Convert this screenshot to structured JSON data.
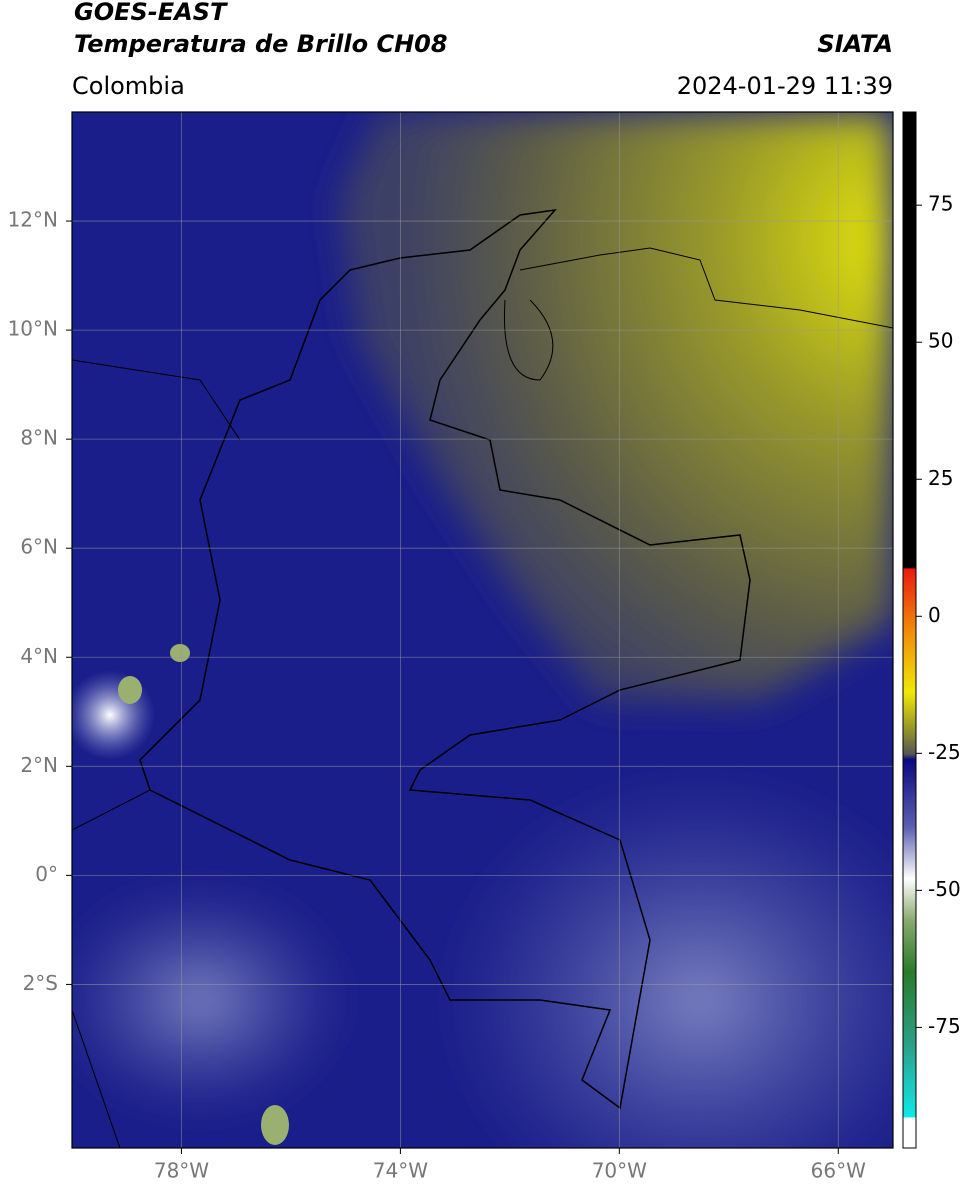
{
  "header": {
    "title": "GOES-EAST",
    "subtitle": "Temperatura de Brillo CH08",
    "source": "SIATA",
    "region": "Colombia",
    "datetime": "2024-01-29 11:39"
  },
  "map": {
    "xlim": [
      -80,
      -65
    ],
    "ylim": [
      -5,
      14
    ],
    "xticks": [
      {
        "value": -78,
        "label": "78°W"
      },
      {
        "value": -74,
        "label": "74°W"
      },
      {
        "value": -70,
        "label": "70°W"
      },
      {
        "value": -66,
        "label": "66°W"
      }
    ],
    "yticks": [
      {
        "value": 12,
        "label": "12°N"
      },
      {
        "value": 10,
        "label": "10°N"
      },
      {
        "value": 8,
        "label": "8°N"
      },
      {
        "value": 6,
        "label": "6°N"
      },
      {
        "value": 4,
        "label": "4°N"
      },
      {
        "value": 2,
        "label": "2°N"
      },
      {
        "value": 0,
        "label": "0°"
      },
      {
        "value": -2,
        "label": "2°S"
      }
    ],
    "grid": true
  },
  "colorbar": {
    "lim": [
      -97,
      92
    ],
    "ticks": [
      75,
      50,
      25,
      0,
      -25,
      -50,
      -75
    ]
  }
}
